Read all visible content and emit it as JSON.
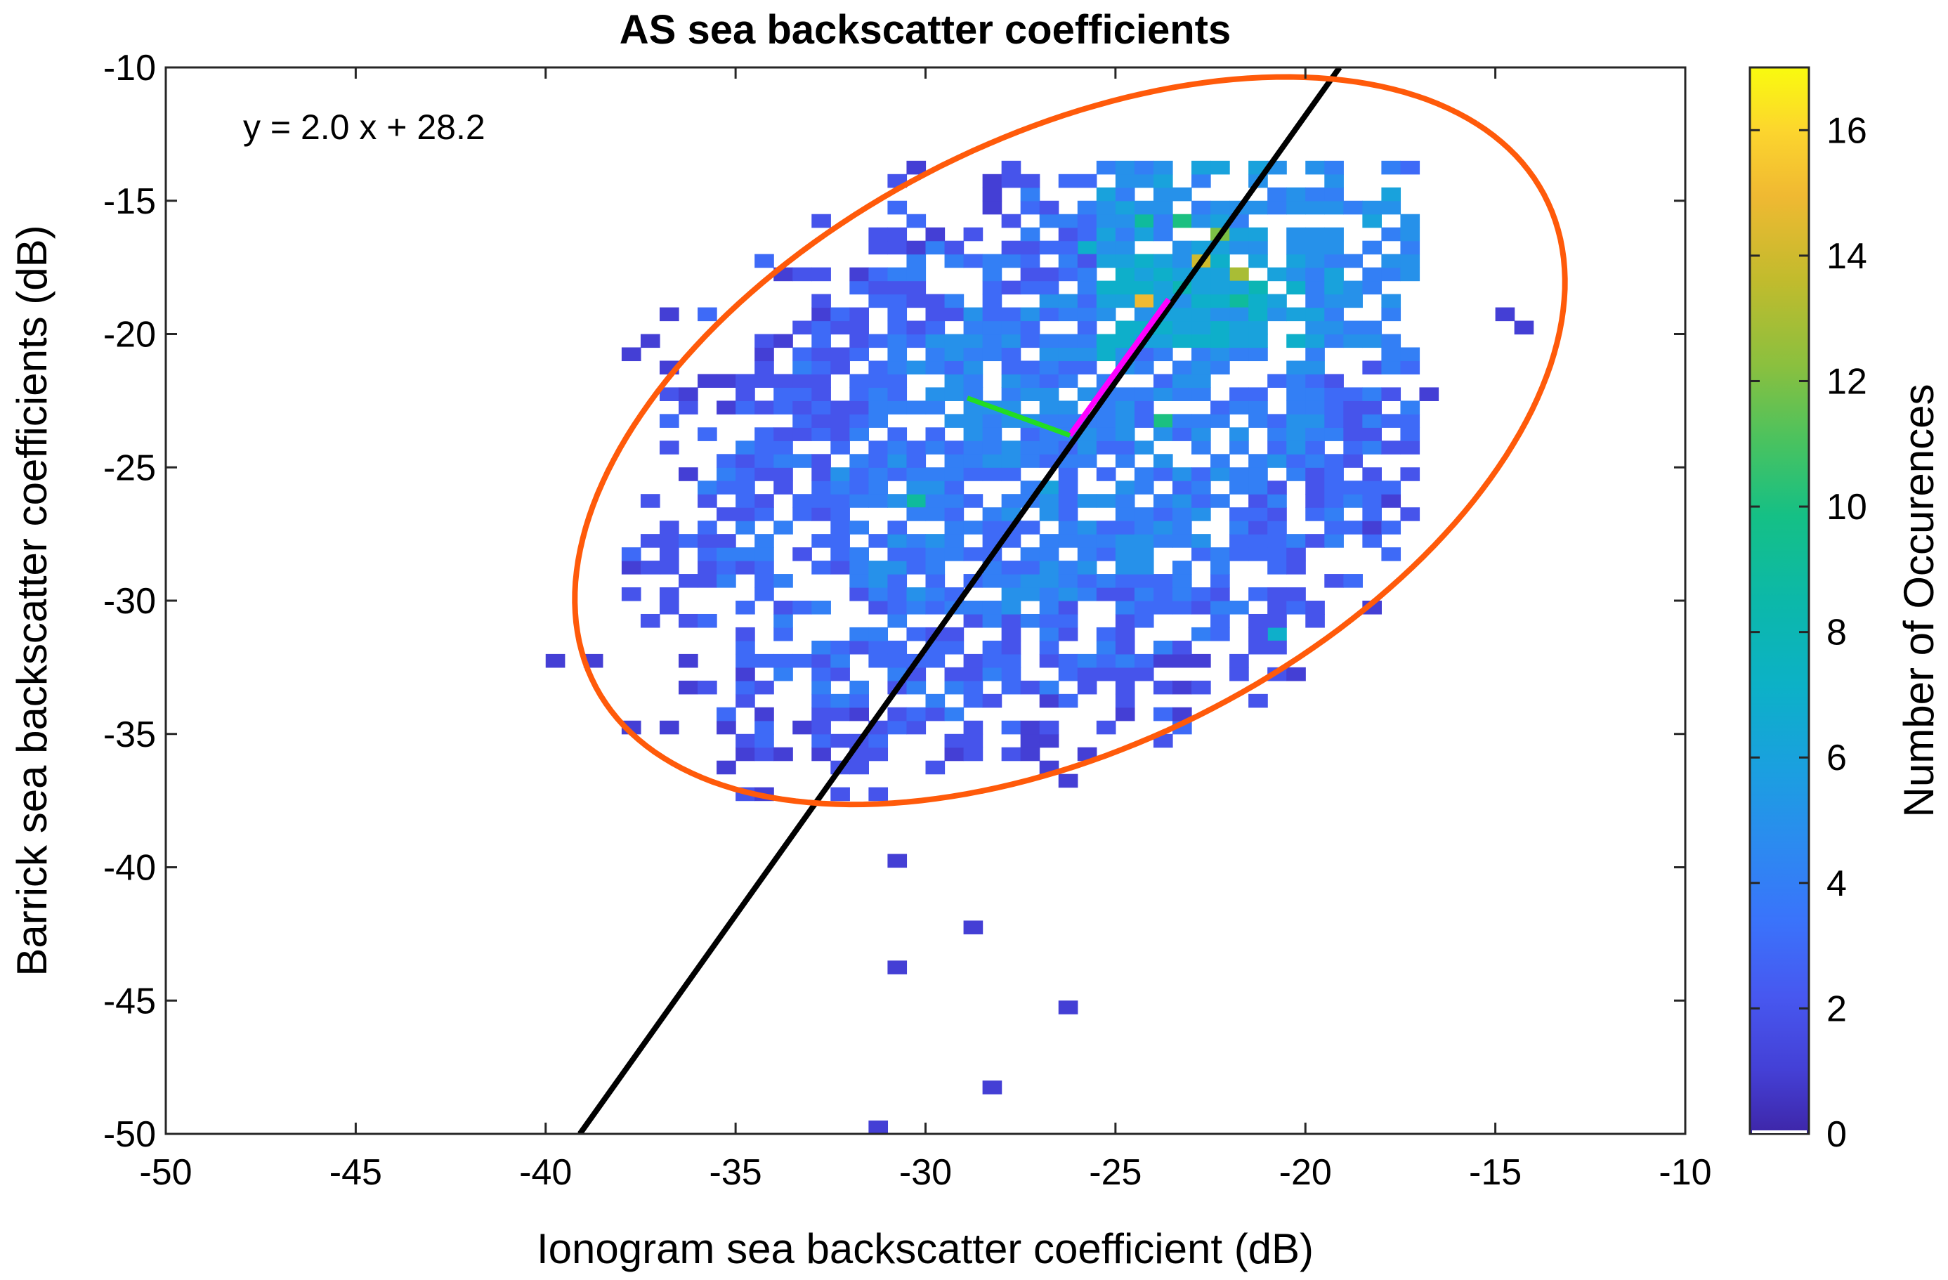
{
  "chart_data": {
    "type": "heatmap",
    "title": "AS sea backscatter coefficients",
    "xlabel": "Ionogram sea backscatter coefficient (dB)",
    "ylabel": "Barrick sea backscatter coefficients (dB)",
    "xlim": [
      -50,
      -10
    ],
    "ylim": [
      -50,
      -10
    ],
    "x_ticks": [
      -50,
      -45,
      -40,
      -35,
      -30,
      -25,
      -20,
      -15,
      -10
    ],
    "y_ticks": [
      -50,
      -45,
      -40,
      -35,
      -30,
      -25,
      -20,
      -15,
      -10
    ],
    "grid": false,
    "bin_size_db": 0.5,
    "annotation": "y = 2.0 x + 28.2",
    "fit_line": {
      "slope": 2.0,
      "intercept": 28.2,
      "color": "#000000"
    },
    "ellipse": {
      "center": [
        -26.2,
        -24.0
      ],
      "semi_axes": [
        16.0,
        10.0
      ],
      "angle_deg": 48,
      "color": "#ff5a0a"
    },
    "major_axis_segment": {
      "from": [
        -26.2,
        -23.8
      ],
      "to": [
        -23.6,
        -18.7
      ],
      "color": "#ff00ff"
    },
    "minor_axis_segment": {
      "from": [
        -26.2,
        -23.8
      ],
      "to": [
        -28.9,
        -22.4
      ],
      "color": "#22dd22"
    },
    "colorbar": {
      "label": "Number of Occurences",
      "ticks": [
        0,
        2,
        4,
        6,
        8,
        10,
        12,
        14,
        16
      ],
      "range": [
        0,
        17
      ],
      "colormap": "parula"
    },
    "dense_region": {
      "description_of_points": "bulk of binned counts 1-7 around the fit line",
      "peak_bins": [
        {
          "x": -23.0,
          "y": -17.5,
          "count": 14
        },
        {
          "x": -22.5,
          "y": -16.5,
          "count": 12
        },
        {
          "x": -24.5,
          "y": -19.0,
          "count": 15
        },
        {
          "x": -22.0,
          "y": -18.0,
          "count": 13
        },
        {
          "x": -24.5,
          "y": -16.0,
          "count": 9
        },
        {
          "x": -23.5,
          "y": -16.0,
          "count": 10
        },
        {
          "x": -22.0,
          "y": -19.0,
          "count": 9
        },
        {
          "x": -21.5,
          "y": -18.5,
          "count": 8
        },
        {
          "x": -23.5,
          "y": -18.5,
          "count": 8
        },
        {
          "x": -26.0,
          "y": -17.0,
          "count": 7
        },
        {
          "x": -30.5,
          "y": -26.5,
          "count": 9
        },
        {
          "x": -24.0,
          "y": -23.5,
          "count": 10
        },
        {
          "x": -21.0,
          "y": -31.5,
          "count": 7
        },
        {
          "x": -25.5,
          "y": -21.0,
          "count": 7
        },
        {
          "x": -27.0,
          "y": -26.0,
          "count": 6
        }
      ],
      "outlier_bins": [
        {
          "x": -37.0,
          "y": -19.5,
          "count": 1
        },
        {
          "x": -38.0,
          "y": -21.0,
          "count": 1
        },
        {
          "x": -37.5,
          "y": -20.5,
          "count": 1
        },
        {
          "x": -40.0,
          "y": -32.5,
          "count": 1
        },
        {
          "x": -39.0,
          "y": -32.5,
          "count": 1
        },
        {
          "x": -38.0,
          "y": -35.0,
          "count": 1
        },
        {
          "x": -15.0,
          "y": -19.5,
          "count": 1
        },
        {
          "x": -14.5,
          "y": -20.0,
          "count": 1
        },
        {
          "x": -17.0,
          "y": -22.5,
          "count": 1
        },
        {
          "x": -31.0,
          "y": -40.0,
          "count": 1
        },
        {
          "x": -29.0,
          "y": -42.5,
          "count": 1
        },
        {
          "x": -31.0,
          "y": -44.0,
          "count": 1
        },
        {
          "x": -26.5,
          "y": -45.5,
          "count": 1
        },
        {
          "x": -28.5,
          "y": -48.5,
          "count": 1
        },
        {
          "x": -31.5,
          "y": -50.0,
          "count": 1
        }
      ]
    }
  }
}
